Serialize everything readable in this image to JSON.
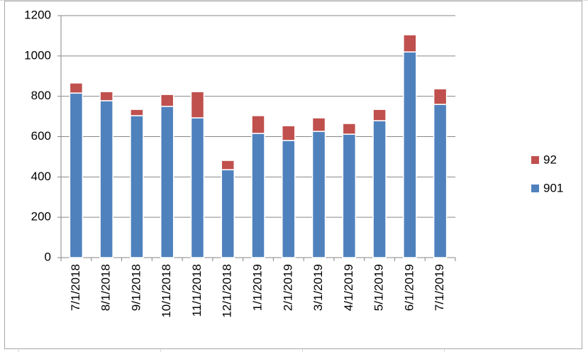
{
  "chart_data": {
    "type": "stacked_bar",
    "categories": [
      "7/1/2018",
      "8/1/2018",
      "9/1/2018",
      "10/1/2018",
      "11/1/2018",
      "12/1/2018",
      "1/1/2019",
      "2/1/2019",
      "3/1/2019",
      "4/1/2019",
      "5/1/2019",
      "6/1/2019",
      "7/1/2019"
    ],
    "series": [
      {
        "name": "901",
        "color": "#4f81bd",
        "values": [
          816,
          778,
          704,
          750,
          693,
          436,
          616,
          581,
          626,
          612,
          679,
          1020,
          760
        ]
      },
      {
        "name": "92",
        "color": "#c0504d",
        "values": [
          50,
          45,
          31,
          59,
          130,
          46,
          88,
          73,
          67,
          53,
          56,
          85,
          77
        ]
      }
    ],
    "ylim": [
      0,
      1200
    ],
    "yticks": [
      0,
      200,
      400,
      600,
      800,
      1000,
      1200
    ],
    "grid": true,
    "legend": "right"
  }
}
